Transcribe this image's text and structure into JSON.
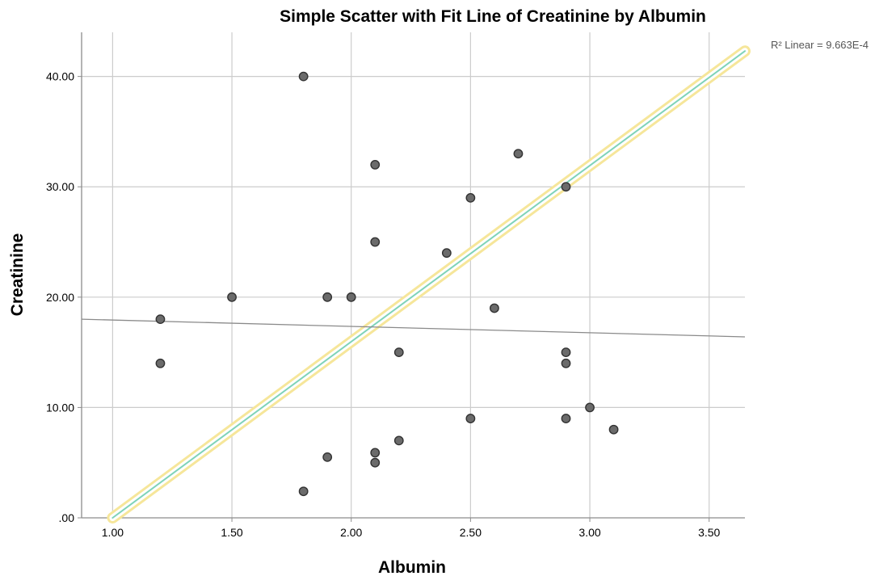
{
  "chart_data": {
    "type": "scatter",
    "title": "Simple Scatter with Fit Line of Creatinine by Albumin",
    "xlabel": "Albumin",
    "ylabel": "Creatinine",
    "xlim": [
      0.87,
      3.65
    ],
    "ylim": [
      0,
      44
    ],
    "x_ticks": [
      1.0,
      1.5,
      2.0,
      2.5,
      3.0,
      3.5
    ],
    "x_tick_labels": [
      "1.00",
      "1.50",
      "2.00",
      "2.50",
      "3.00",
      "3.50"
    ],
    "y_ticks": [
      0,
      10,
      20,
      30,
      40
    ],
    "y_tick_labels": [
      ".00",
      "10.00",
      "20.00",
      "30.00",
      "40.00"
    ],
    "grid": true,
    "points": [
      {
        "x": 1.2,
        "y": 18
      },
      {
        "x": 1.2,
        "y": 14
      },
      {
        "x": 1.5,
        "y": 20
      },
      {
        "x": 1.8,
        "y": 40
      },
      {
        "x": 1.8,
        "y": 2.4
      },
      {
        "x": 1.9,
        "y": 20
      },
      {
        "x": 1.9,
        "y": 5.5
      },
      {
        "x": 2.0,
        "y": 20
      },
      {
        "x": 2.1,
        "y": 32
      },
      {
        "x": 2.1,
        "y": 25
      },
      {
        "x": 2.1,
        "y": 5.9
      },
      {
        "x": 2.1,
        "y": 5.0
      },
      {
        "x": 2.2,
        "y": 15
      },
      {
        "x": 2.2,
        "y": 7
      },
      {
        "x": 2.4,
        "y": 24
      },
      {
        "x": 2.5,
        "y": 29
      },
      {
        "x": 2.5,
        "y": 9
      },
      {
        "x": 2.6,
        "y": 19
      },
      {
        "x": 2.7,
        "y": 33
      },
      {
        "x": 2.9,
        "y": 30
      },
      {
        "x": 2.9,
        "y": 15
      },
      {
        "x": 2.9,
        "y": 14
      },
      {
        "x": 2.9,
        "y": 9
      },
      {
        "x": 3.0,
        "y": 10
      },
      {
        "x": 3.1,
        "y": 8
      }
    ],
    "fit_line": {
      "type": "linear",
      "x": [
        0.87,
        3.65
      ],
      "y": [
        18.0,
        16.4
      ],
      "color": "#8a8a8a"
    },
    "reference_line": {
      "x": [
        1.0,
        3.65
      ],
      "y": [
        0,
        42.3
      ],
      "color": "#7fd3b9",
      "highlight_color": "#f6e69a"
    },
    "r2_label": "R² Linear = 9.663E-4",
    "colors": {
      "marker_fill": "#6b6b6b",
      "marker_stroke": "#333333",
      "grid": "#cccccc",
      "axis": "#8c8c8c"
    }
  }
}
